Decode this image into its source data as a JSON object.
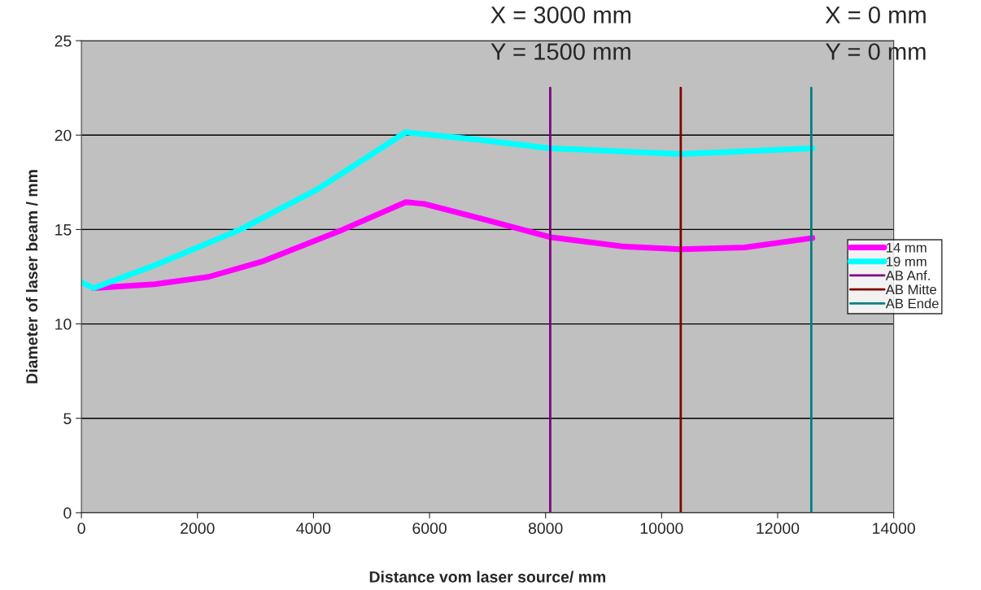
{
  "chart_data": {
    "type": "line",
    "xlabel": "Distance vom laser source/ mm",
    "ylabel": "Diameter of laser beam / mm",
    "xlim": [
      0,
      14000
    ],
    "xticks": [
      0,
      2000,
      4000,
      6000,
      8000,
      10000,
      12000,
      14000
    ],
    "ylim": [
      0,
      25
    ],
    "yticks": [
      0,
      5,
      10,
      15,
      20,
      25
    ],
    "grid": "y",
    "legend": "right",
    "annotations": [
      "X = 3000 mm\nY = 1500 mm",
      "X = 0 mm\nY = 0 mm"
    ],
    "series": [
      {
        "name": "14 mm",
        "color": "#ff00ff",
        "x": [
          210,
          1260,
          2200,
          3110,
          4510,
          5590,
          5920,
          6990,
          8070,
          9330,
          10330,
          11430,
          12600
        ],
        "values": [
          11.9,
          12.1,
          12.5,
          13.3,
          15.0,
          16.45,
          16.35,
          15.5,
          14.6,
          14.1,
          13.95,
          14.05,
          14.55
        ]
      },
      {
        "name": "19 mm",
        "color": "#00ffff",
        "x": [
          0,
          210,
          1260,
          2740,
          4050,
          5590,
          6850,
          8070,
          10330,
          12600
        ],
        "values": [
          12.2,
          11.9,
          13.1,
          15.0,
          17.1,
          20.15,
          19.75,
          19.3,
          19.0,
          19.3
        ]
      },
      {
        "name": "AB Anf.",
        "color": "#800080",
        "x": [
          8080,
          8080
        ],
        "values": [
          0,
          22.5
        ]
      },
      {
        "name": "AB Mitte",
        "color": "#800000",
        "x": [
          10330,
          10330
        ],
        "values": [
          0,
          22.5
        ]
      },
      {
        "name": "AB Ende",
        "color": "#008080",
        "x": [
          12580,
          12580
        ],
        "values": [
          0,
          22.5
        ]
      }
    ]
  }
}
